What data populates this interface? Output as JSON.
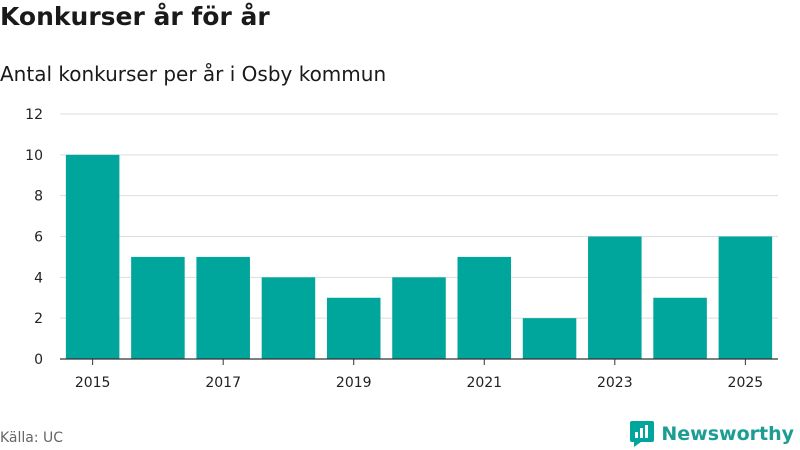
{
  "header": {
    "title": "Konkurser år för år",
    "subtitle": "Antal konkurser per år i Osby kommun"
  },
  "footer": {
    "source": "Källa: UC",
    "brand": "Newsworthy",
    "brand_icon": "newsworthy-logo-icon"
  },
  "colors": {
    "bar": "#00a59b",
    "grid": "#dddddd",
    "axis": "#333333"
  },
  "chart_data": {
    "type": "bar",
    "title": "Konkurser år för år",
    "subtitle": "Antal konkurser per år i Osby kommun",
    "xlabel": "",
    "ylabel": "",
    "categories": [
      "2015",
      "2016",
      "2017",
      "2018",
      "2019",
      "2020",
      "2021",
      "2022",
      "2023",
      "2024",
      "2025"
    ],
    "values": [
      10,
      5,
      5,
      4,
      3,
      4,
      5,
      2,
      6,
      3,
      6
    ],
    "ylim": [
      0,
      12
    ],
    "yticks": [
      0,
      2,
      4,
      6,
      8,
      10,
      12
    ],
    "xtick_labels": [
      "2015",
      "2017",
      "2019",
      "2021",
      "2023",
      "2025"
    ],
    "grid": true,
    "legend": "none"
  }
}
